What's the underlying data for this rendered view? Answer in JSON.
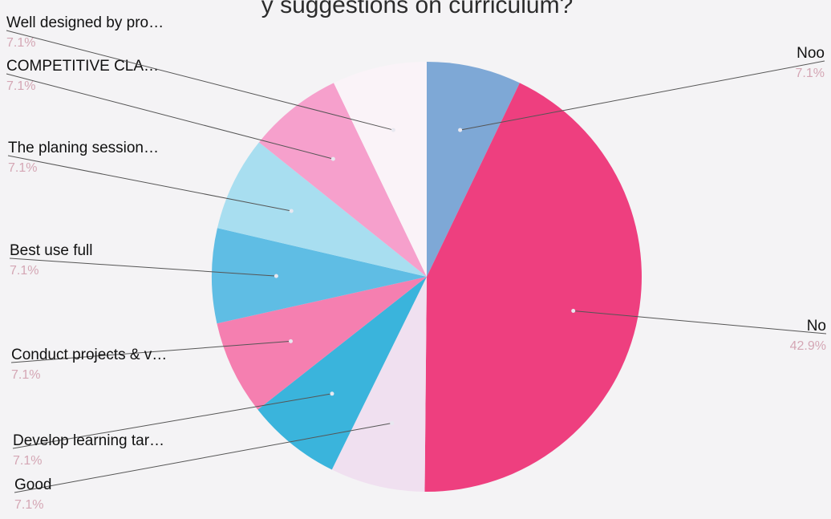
{
  "chart_data": {
    "type": "pie",
    "title": "y suggestions on curriculum?",
    "slices": [
      {
        "label": "Noo",
        "value": 7.1,
        "pct_label": "7.1%",
        "color": "#7ea8d6"
      },
      {
        "label": "No",
        "value": 42.9,
        "pct_label": "42.9%",
        "color": "#ee3f7f"
      },
      {
        "label": "Good",
        "value": 7.1,
        "pct_label": "7.1%",
        "color": "#f0e0f0"
      },
      {
        "label": "Develop learning tar…",
        "value": 7.1,
        "pct_label": "7.1%",
        "color": "#3ab4dc"
      },
      {
        "label": "Conduct projects & v…",
        "value": 7.1,
        "pct_label": "7.1%",
        "color": "#f57fb0"
      },
      {
        "label": "Best use full",
        "value": 7.1,
        "pct_label": "7.1%",
        "color": "#5fbde4"
      },
      {
        "label": "The planing session…",
        "value": 7.1,
        "pct_label": "7.1%",
        "color": "#a8def0"
      },
      {
        "label": "COMPETITIVE CLA…",
        "value": 7.1,
        "pct_label": "7.1%",
        "color": "#f6a0cc"
      },
      {
        "label": "Well designed by pro…",
        "value": 7.1,
        "pct_label": "7.1%",
        "color": "#faf3f8"
      }
    ],
    "legend": "none"
  }
}
